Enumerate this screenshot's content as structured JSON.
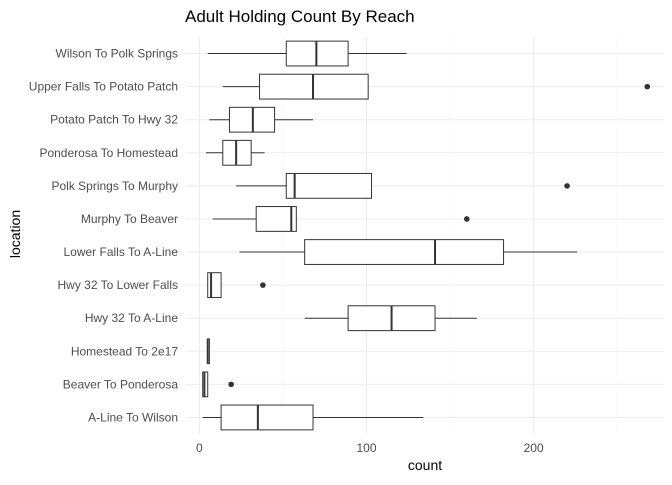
{
  "chart_data": {
    "type": "boxplot",
    "orientation": "horizontal",
    "title": "Adult Holding Count By Reach",
    "xlabel": "count",
    "ylabel": "location",
    "xlim": [
      -8,
      278
    ],
    "x_ticks": [
      0,
      100,
      200
    ],
    "grid": true,
    "categories": [
      "A-Line To Wilson",
      "Beaver To Ponderosa",
      "Homestead To 2e17",
      "Hwy 32 To A-Line",
      "Hwy 32 To Lower Falls",
      "Lower Falls To A-Line",
      "Murphy To Beaver",
      "Polk Springs To Murphy",
      "Ponderosa To Homestead",
      "Potato Patch To Hwy 32",
      "Upper Falls To Potato Patch",
      "Wilson To Polk Springs"
    ],
    "boxes": [
      {
        "category": "A-Line To Wilson",
        "min": 2,
        "q1": 13,
        "median": 35,
        "q3": 68,
        "max": 134,
        "outliers": []
      },
      {
        "category": "Beaver To Ponderosa",
        "min": 2,
        "q1": 2,
        "median": 3,
        "q3": 5,
        "max": 5,
        "outliers": [
          19
        ]
      },
      {
        "category": "Homestead To 2e17",
        "min": 5,
        "q1": 5,
        "median": 5,
        "q3": 6,
        "max": 6,
        "outliers": []
      },
      {
        "category": "Hwy 32 To A-Line",
        "min": 63,
        "q1": 89,
        "median": 115,
        "q3": 141,
        "max": 166,
        "outliers": []
      },
      {
        "category": "Hwy 32 To Lower Falls",
        "min": 5,
        "q1": 5,
        "median": 7,
        "q3": 13,
        "max": 13,
        "outliers": [
          38
        ]
      },
      {
        "category": "Lower Falls To A-Line",
        "min": 24,
        "q1": 63,
        "median": 141,
        "q3": 182,
        "max": 226,
        "outliers": []
      },
      {
        "category": "Murphy To Beaver",
        "min": 8,
        "q1": 34,
        "median": 55,
        "q3": 58,
        "max": 58,
        "outliers": [
          160
        ]
      },
      {
        "category": "Polk Springs To Murphy",
        "min": 22,
        "q1": 52,
        "median": 57,
        "q3": 103,
        "max": 103,
        "outliers": [
          220
        ]
      },
      {
        "category": "Ponderosa To Homestead",
        "min": 4,
        "q1": 14,
        "median": 22,
        "q3": 31,
        "max": 39,
        "outliers": []
      },
      {
        "category": "Potato Patch To Hwy 32",
        "min": 6,
        "q1": 18,
        "median": 32,
        "q3": 45,
        "max": 68,
        "outliers": []
      },
      {
        "category": "Upper Falls To Potato Patch",
        "min": 14,
        "q1": 36,
        "median": 68,
        "q3": 101,
        "max": 101,
        "outliers": [
          268
        ]
      },
      {
        "category": "Wilson To Polk Springs",
        "min": 5,
        "q1": 52,
        "median": 70,
        "q3": 89,
        "max": 124,
        "outliers": []
      }
    ]
  }
}
